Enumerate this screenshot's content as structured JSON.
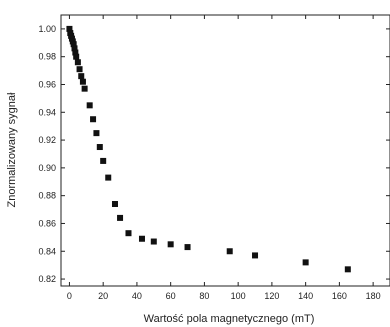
{
  "chart_data": {
    "type": "scatter",
    "title": "",
    "xlabel": "Wartość pola magnetycznego (mT)",
    "ylabel": "Znormalizowany sygnał",
    "xlim": [
      -5,
      190
    ],
    "ylim": [
      0.815,
      1.01
    ],
    "xticks": [
      0,
      20,
      40,
      60,
      80,
      100,
      120,
      140,
      160,
      180
    ],
    "yticks": [
      0.82,
      0.84,
      0.86,
      0.88,
      0.9,
      0.92,
      0.94,
      0.96,
      0.98,
      1.0
    ],
    "ytick_labels": [
      "0.82",
      "0.84",
      "0.86",
      "0.88",
      "0.90",
      "0.92",
      "0.94",
      "0.96",
      "0.98",
      "1.00"
    ],
    "grid": false,
    "marker": "square",
    "marker_color": "#111111",
    "series": [
      {
        "x": [
          0,
          0.5,
          1,
          1.5,
          2,
          2.5,
          3,
          3.5,
          4,
          5,
          6,
          7,
          8,
          9,
          12,
          14,
          16,
          18,
          20,
          23,
          27,
          30,
          35,
          43,
          50,
          60,
          70,
          95,
          110,
          140,
          165
        ],
        "y": [
          1.0,
          0.997,
          0.995,
          0.993,
          0.991,
          0.989,
          0.986,
          0.983,
          0.98,
          0.976,
          0.971,
          0.966,
          0.962,
          0.957,
          0.945,
          0.935,
          0.925,
          0.915,
          0.905,
          0.893,
          0.874,
          0.864,
          0.853,
          0.849,
          0.847,
          0.845,
          0.843,
          0.84,
          0.837,
          0.832,
          0.827
        ]
      }
    ]
  }
}
